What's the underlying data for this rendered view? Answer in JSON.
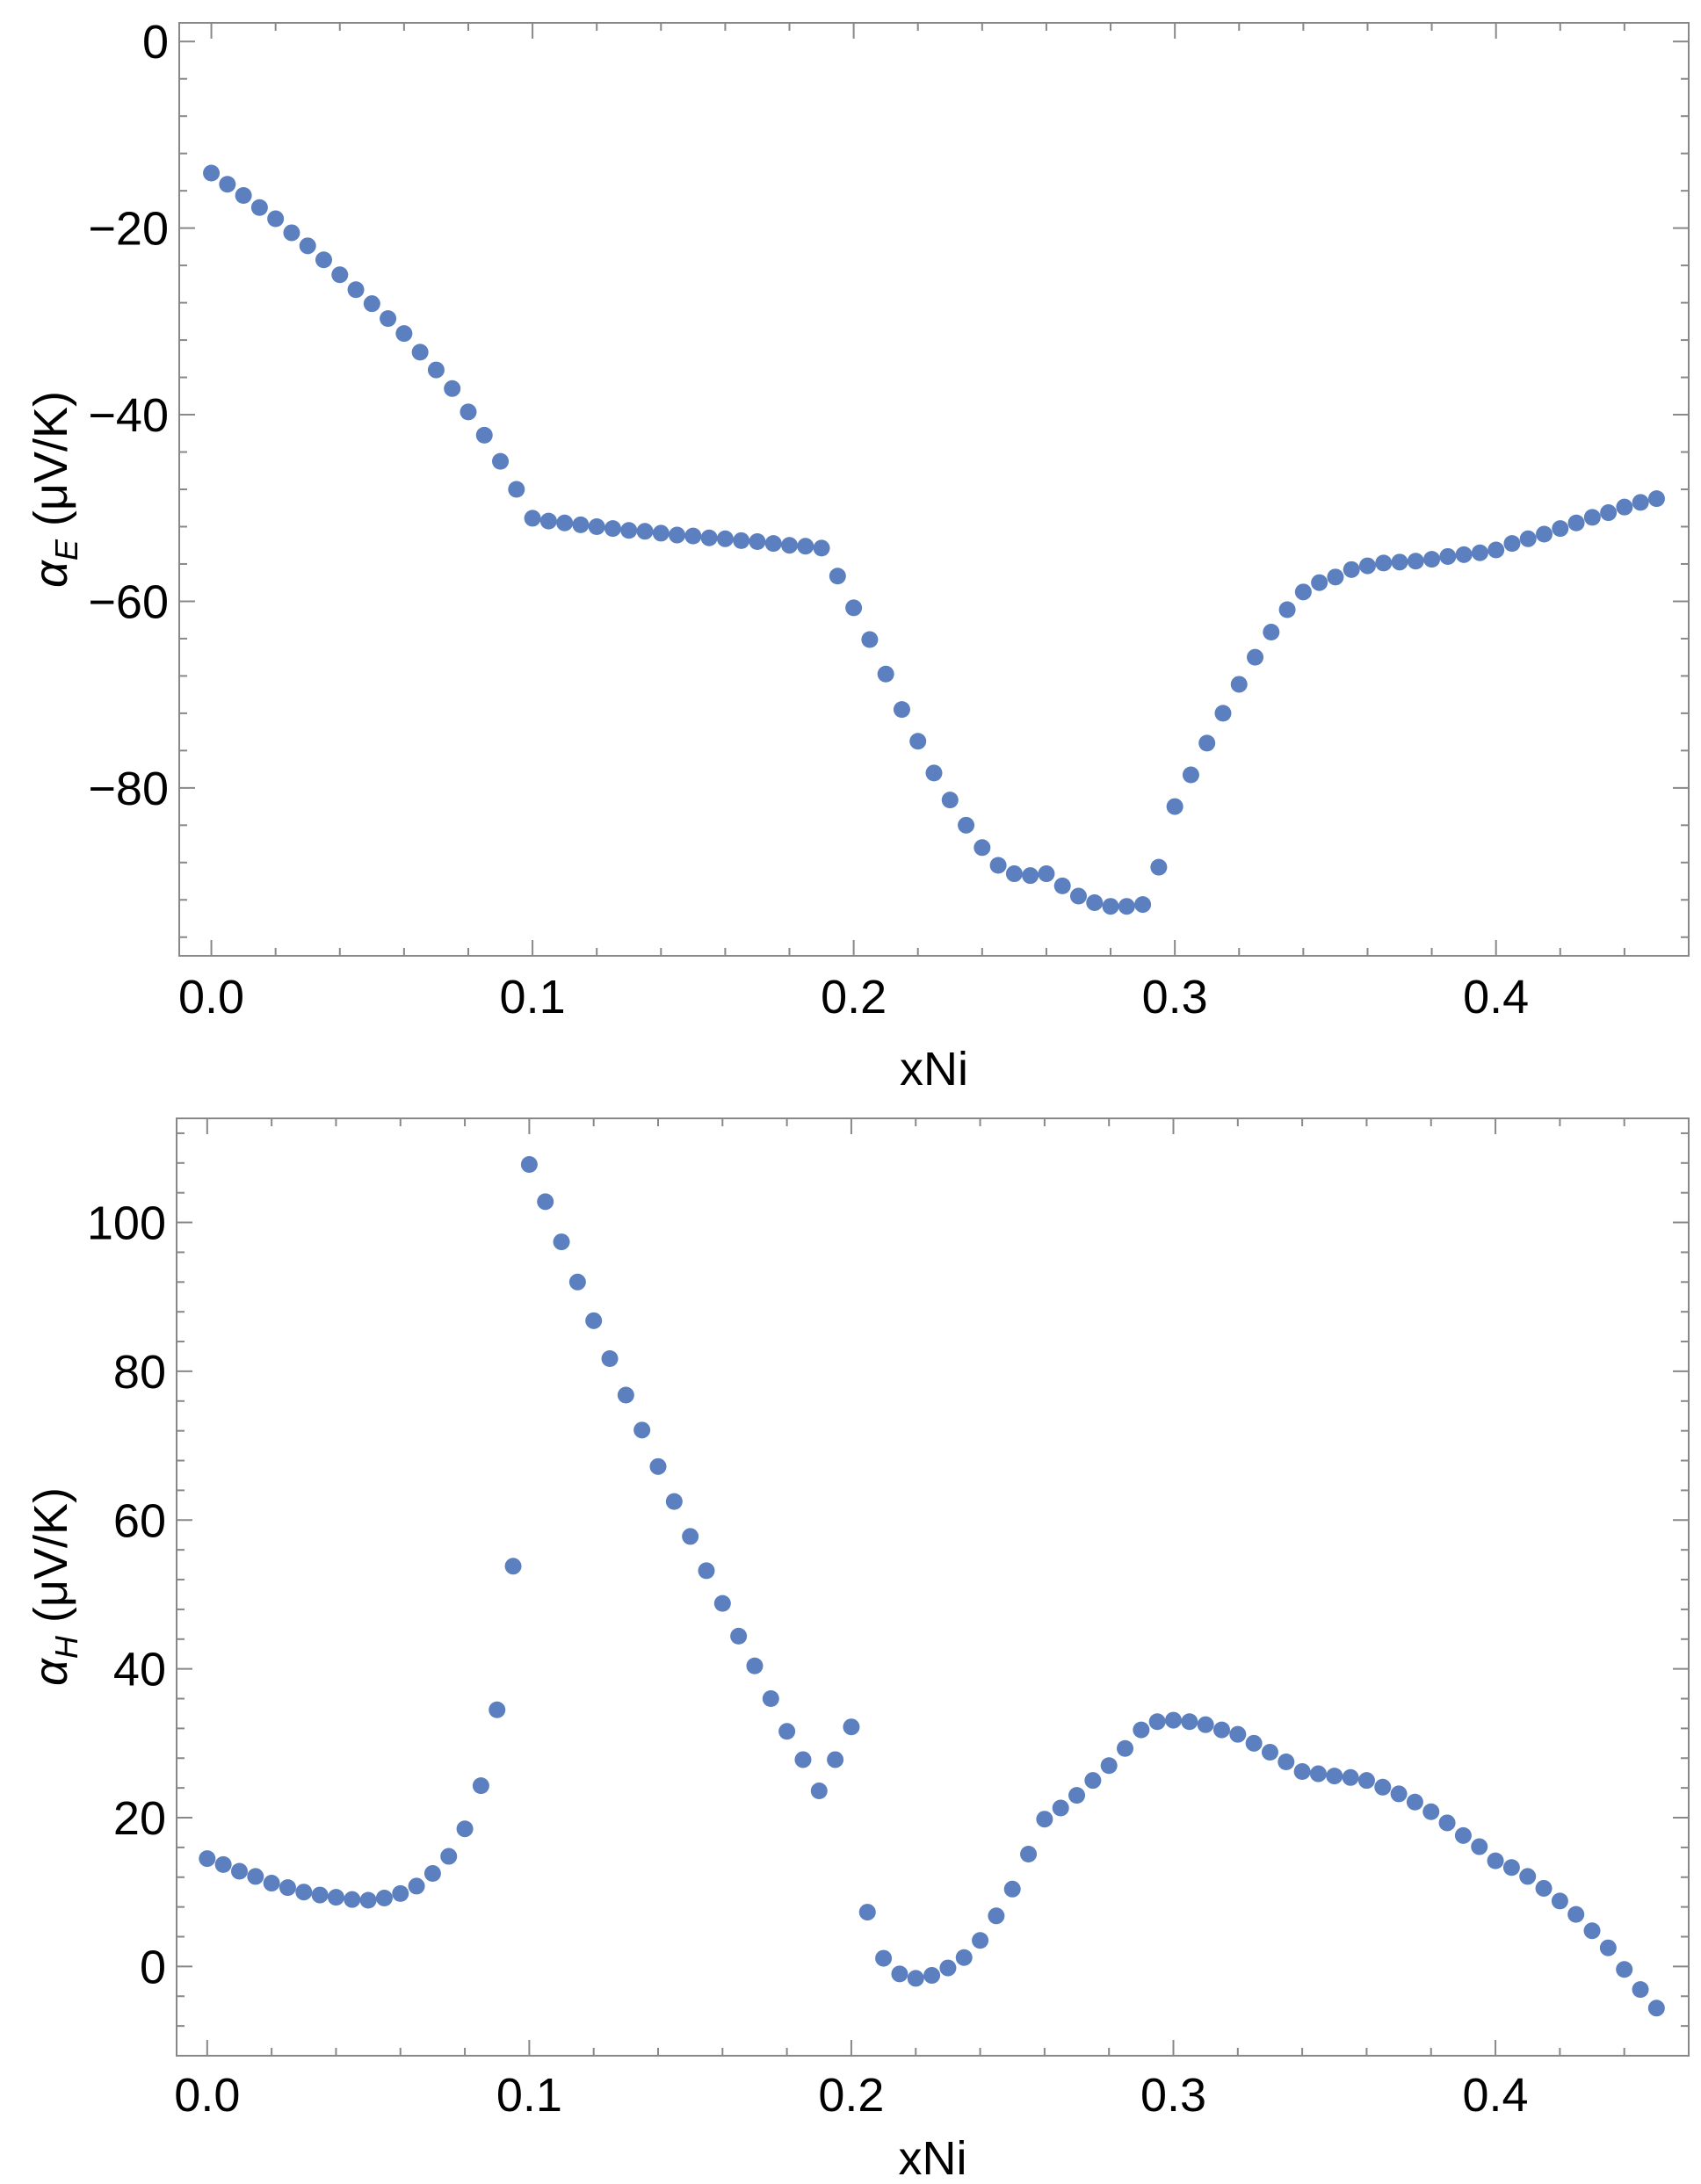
{
  "chart_data": [
    {
      "type": "scatter",
      "xlabel": "xNi",
      "ylabel": {
        "symbol": "α",
        "sub": "E",
        "rest": " (μV/K)"
      },
      "xlim": [
        -0.01,
        0.46
      ],
      "ylim": [
        -98,
        2
      ],
      "xticks": [
        0.0,
        0.1,
        0.2,
        0.3,
        0.4
      ],
      "xtick_labels": [
        "0.0",
        "0.1",
        "0.2",
        "0.3",
        "0.4"
      ],
      "yticks": [
        0,
        -20,
        -40,
        -60,
        -80
      ],
      "ytick_labels": [
        "0",
        "−20",
        "−40",
        "−60",
        "−80"
      ],
      "grid": false,
      "legend": "none",
      "marker_color": "#5b7fbf",
      "x": [
        0.0,
        0.005,
        0.01,
        0.015,
        0.02,
        0.025,
        0.03,
        0.035,
        0.04,
        0.045,
        0.05,
        0.055,
        0.06,
        0.065,
        0.07,
        0.075,
        0.08,
        0.085,
        0.09,
        0.095,
        0.1,
        0.105,
        0.11,
        0.115,
        0.12,
        0.125,
        0.13,
        0.135,
        0.14,
        0.145,
        0.15,
        0.155,
        0.16,
        0.165,
        0.17,
        0.175,
        0.18,
        0.185,
        0.19,
        0.195,
        0.2,
        0.205,
        0.21,
        0.215,
        0.22,
        0.225,
        0.23,
        0.235,
        0.24,
        0.245,
        0.25,
        0.255,
        0.26,
        0.265,
        0.27,
        0.275,
        0.28,
        0.285,
        0.29,
        0.295,
        0.3,
        0.305,
        0.31,
        0.315,
        0.32,
        0.325,
        0.33,
        0.335,
        0.34,
        0.345,
        0.35,
        0.355,
        0.36,
        0.365,
        0.37,
        0.375,
        0.38,
        0.385,
        0.39,
        0.395,
        0.4,
        0.405,
        0.41,
        0.415,
        0.42,
        0.425,
        0.43,
        0.435,
        0.44,
        0.445,
        0.45
      ],
      "y": [
        -14.1,
        -15.3,
        -16.5,
        -17.8,
        -19.0,
        -20.5,
        -21.9,
        -23.4,
        -25.0,
        -26.6,
        -28.1,
        -29.7,
        -31.3,
        -33.3,
        -35.2,
        -37.2,
        -39.7,
        -42.2,
        -45.0,
        -48.0,
        -51.1,
        -51.4,
        -51.6,
        -51.8,
        -52.0,
        -52.2,
        -52.4,
        -52.5,
        -52.7,
        -52.9,
        -53.0,
        -53.2,
        -53.3,
        -53.5,
        -53.6,
        -53.8,
        -54.0,
        -54.1,
        -54.3,
        -57.3,
        -60.7,
        -64.1,
        -67.8,
        -71.6,
        -75.0,
        -78.4,
        -81.3,
        -84.0,
        -86.4,
        -88.3,
        -89.2,
        -89.4,
        -89.2,
        -90.5,
        -91.6,
        -92.3,
        -92.7,
        -92.7,
        -92.5,
        -88.5,
        -82.0,
        -78.6,
        -75.2,
        -72.0,
        -68.9,
        -66.0,
        -63.3,
        -60.9,
        -59.0,
        -58.0,
        -57.4,
        -56.6,
        -56.2,
        -55.9,
        -55.8,
        -55.7,
        -55.5,
        -55.2,
        -55.0,
        -54.8,
        -54.5,
        -53.8,
        -53.3,
        -52.8,
        -52.2,
        -51.6,
        -51.0,
        -50.5,
        -49.9,
        -49.4,
        -49.0
      ]
    },
    {
      "type": "scatter",
      "xlabel": "xNi",
      "ylabel": {
        "symbol": "α",
        "sub": "H",
        "rest": " (μV/K)"
      },
      "xlim": [
        -0.0095,
        0.46
      ],
      "ylim": [
        -12,
        114
      ],
      "xticks": [
        0.0,
        0.1,
        0.2,
        0.3,
        0.4
      ],
      "xtick_labels": [
        "0.0",
        "0.1",
        "0.2",
        "0.3",
        "0.4"
      ],
      "yticks": [
        0,
        20,
        40,
        60,
        80,
        100
      ],
      "ytick_labels": [
        "0",
        "20",
        "40",
        "60",
        "80",
        "100"
      ],
      "grid": false,
      "legend": "none",
      "marker_color": "#5b7fbf",
      "x": [
        0.0,
        0.005,
        0.01,
        0.015,
        0.02,
        0.025,
        0.03,
        0.035,
        0.04,
        0.045,
        0.05,
        0.055,
        0.06,
        0.065,
        0.07,
        0.075,
        0.08,
        0.085,
        0.09,
        0.095,
        0.1,
        0.105,
        0.11,
        0.115,
        0.12,
        0.125,
        0.13,
        0.135,
        0.14,
        0.145,
        0.15,
        0.155,
        0.16,
        0.165,
        0.17,
        0.175,
        0.18,
        0.185,
        0.19,
        0.195,
        0.2,
        0.205,
        0.21,
        0.215,
        0.22,
        0.225,
        0.23,
        0.235,
        0.24,
        0.245,
        0.25,
        0.255,
        0.26,
        0.265,
        0.27,
        0.275,
        0.28,
        0.285,
        0.29,
        0.295,
        0.3,
        0.305,
        0.31,
        0.315,
        0.32,
        0.325,
        0.33,
        0.335,
        0.34,
        0.345,
        0.35,
        0.355,
        0.36,
        0.365,
        0.37,
        0.375,
        0.38,
        0.385,
        0.39,
        0.395,
        0.4,
        0.405,
        0.41,
        0.415,
        0.42,
        0.425,
        0.43,
        0.435,
        0.44,
        0.445,
        0.45
      ],
      "y": [
        14.5,
        13.7,
        12.8,
        12.1,
        11.2,
        10.6,
        10.0,
        9.6,
        9.3,
        9.0,
        8.9,
        9.2,
        9.8,
        10.8,
        12.5,
        14.8,
        18.5,
        24.3,
        34.5,
        53.8,
        107.8,
        102.8,
        97.4,
        92.0,
        86.8,
        81.7,
        76.8,
        72.1,
        67.2,
        62.5,
        57.8,
        53.2,
        48.8,
        44.4,
        40.4,
        36.0,
        31.6,
        27.8,
        23.6,
        27.8,
        32.2,
        7.3,
        1.1,
        -1.0,
        -1.6,
        -1.2,
        -0.2,
        1.2,
        3.5,
        6.8,
        10.4,
        15.1,
        19.8,
        21.3,
        23.0,
        25.0,
        27.0,
        29.3,
        31.8,
        32.9,
        33.1,
        32.9,
        32.5,
        31.8,
        31.2,
        30.0,
        28.8,
        27.5,
        26.2,
        25.9,
        25.6,
        25.4,
        25.0,
        24.1,
        23.2,
        22.1,
        20.8,
        19.3,
        17.6,
        16.1,
        14.2,
        13.3,
        12.1,
        10.5,
        8.8,
        7.0,
        4.8,
        2.5,
        -0.4,
        -3.1,
        -5.6
      ]
    }
  ]
}
